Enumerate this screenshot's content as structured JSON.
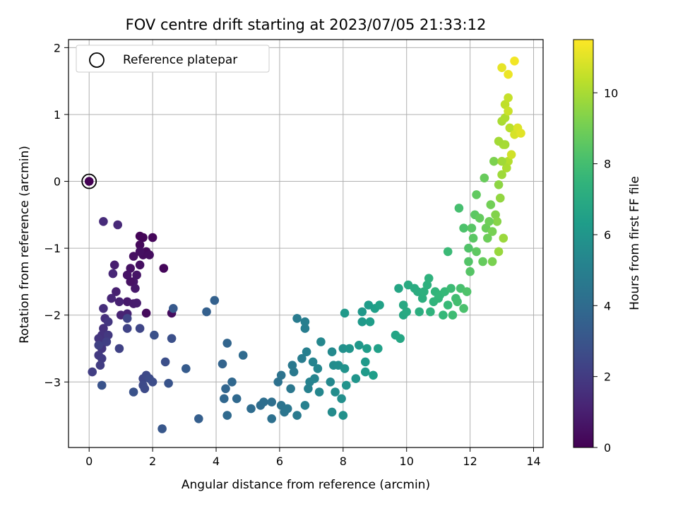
{
  "chart_data": {
    "type": "scatter",
    "title": "FOV centre drift starting at 2023/07/05 21:33:12",
    "xlabel": "Angular distance from reference (arcmin)",
    "ylabel": "Rotation from reference (arcmin)",
    "xlim": [
      -0.65,
      14.3
    ],
    "ylim": [
      -3.98,
      2.12
    ],
    "xticks": [
      0,
      2,
      4,
      6,
      8,
      10,
      12,
      14
    ],
    "yticks": [
      -3,
      -2,
      -1,
      0,
      1,
      2
    ],
    "grid": true,
    "colormap": "viridis",
    "colorbar": {
      "label": "Hours from first FF file",
      "range": [
        0,
        11.5
      ],
      "ticks": [
        0,
        2,
        4,
        6,
        8,
        10
      ]
    },
    "legend": {
      "position": "top-left",
      "entries": [
        "Reference platepar"
      ]
    },
    "reference_point": {
      "x": 0,
      "y": 0
    },
    "point_color_rule": "color encodes hours from first FF file (0 to 11.5 h)",
    "points": [
      [
        0.0,
        0.0,
        0.0
      ],
      [
        1.6,
        -0.82,
        0.1
      ],
      [
        1.7,
        -0.84,
        0.15
      ],
      [
        2.0,
        -0.84,
        0.2
      ],
      [
        1.6,
        -0.95,
        0.25
      ],
      [
        1.8,
        -1.05,
        0.3
      ],
      [
        1.7,
        -1.1,
        0.35
      ],
      [
        1.9,
        -1.1,
        0.4
      ],
      [
        1.6,
        -1.25,
        0.45
      ],
      [
        1.4,
        -1.12,
        0.5
      ],
      [
        1.3,
        -1.3,
        0.55
      ],
      [
        1.2,
        -1.4,
        0.6
      ],
      [
        1.5,
        -1.4,
        0.65
      ],
      [
        1.4,
        -1.5,
        0.7
      ],
      [
        1.45,
        -1.6,
        0.75
      ],
      [
        1.2,
        -1.8,
        0.8
      ],
      [
        1.4,
        -1.83,
        0.85
      ],
      [
        1.5,
        -1.82,
        0.9
      ],
      [
        0.8,
        -1.25,
        0.95
      ],
      [
        0.85,
        -1.65,
        1.0
      ],
      [
        0.95,
        -1.8,
        1.05
      ],
      [
        1.2,
        -1.98,
        1.1
      ],
      [
        1.0,
        -2.0,
        1.15
      ],
      [
        1.8,
        -1.97,
        0.3
      ],
      [
        2.35,
        -1.3,
        0.2
      ],
      [
        2.6,
        -1.97,
        0.4
      ],
      [
        1.6,
        -1.05,
        0.45
      ],
      [
        1.3,
        -1.5,
        0.55
      ],
      [
        0.7,
        -1.75,
        1.2
      ],
      [
        0.75,
        -1.38,
        1.25
      ],
      [
        0.9,
        -0.65,
        1.3
      ],
      [
        0.45,
        -0.6,
        1.4
      ],
      [
        0.45,
        -1.9,
        1.5
      ],
      [
        0.5,
        -2.05,
        1.55
      ],
      [
        0.45,
        -2.2,
        1.6
      ],
      [
        0.4,
        -2.3,
        1.65
      ],
      [
        0.35,
        -2.4,
        1.7
      ],
      [
        0.3,
        -2.35,
        1.75
      ],
      [
        0.4,
        -2.5,
        1.8
      ],
      [
        0.6,
        -2.1,
        1.85
      ],
      [
        0.6,
        -2.3,
        1.9
      ],
      [
        0.3,
        -2.6,
        1.95
      ],
      [
        0.4,
        -2.65,
        2.0
      ],
      [
        0.35,
        -2.75,
        2.05
      ],
      [
        0.1,
        -2.85,
        2.1
      ],
      [
        0.55,
        -2.4,
        2.15
      ],
      [
        0.3,
        -2.45,
        2.2
      ],
      [
        0.95,
        -2.5,
        2.25
      ],
      [
        1.2,
        -2.2,
        2.3
      ],
      [
        1.2,
        -2.05,
        2.35
      ],
      [
        1.6,
        -2.2,
        2.4
      ],
      [
        1.7,
        -2.95,
        2.45
      ],
      [
        1.8,
        -2.9,
        2.5
      ],
      [
        1.7,
        -3.05,
        2.55
      ],
      [
        1.75,
        -3.1,
        2.6
      ],
      [
        1.9,
        -2.95,
        2.65
      ],
      [
        2.0,
        -3.0,
        2.7
      ],
      [
        2.4,
        -2.7,
        2.75
      ],
      [
        2.6,
        -2.35,
        2.8
      ],
      [
        2.05,
        -2.3,
        2.85
      ],
      [
        1.4,
        -3.15,
        2.9
      ],
      [
        0.4,
        -3.05,
        2.95
      ],
      [
        2.5,
        -3.02,
        3.0
      ],
      [
        2.3,
        -3.7,
        3.1
      ],
      [
        2.65,
        -1.9,
        3.2
      ],
      [
        3.05,
        -2.8,
        3.3
      ],
      [
        3.45,
        -3.55,
        3.45
      ],
      [
        3.7,
        -1.95,
        3.5
      ],
      [
        3.95,
        -1.78,
        3.55
      ],
      [
        4.2,
        -2.73,
        3.65
      ],
      [
        4.35,
        -2.42,
        3.7
      ],
      [
        4.3,
        -3.1,
        3.75
      ],
      [
        4.25,
        -3.25,
        3.8
      ],
      [
        4.5,
        -3.0,
        3.85
      ],
      [
        4.65,
        -3.25,
        3.9
      ],
      [
        4.35,
        -3.5,
        3.95
      ],
      [
        4.85,
        -2.6,
        4.0
      ],
      [
        5.1,
        -3.4,
        4.05
      ],
      [
        5.4,
        -3.35,
        4.1
      ],
      [
        5.5,
        -3.3,
        4.15
      ],
      [
        5.75,
        -3.3,
        4.2
      ],
      [
        5.75,
        -3.55,
        4.25
      ],
      [
        5.95,
        -3.0,
        4.3
      ],
      [
        6.05,
        -2.9,
        4.35
      ],
      [
        6.05,
        -3.35,
        4.4
      ],
      [
        6.15,
        -3.45,
        4.45
      ],
      [
        6.25,
        -3.4,
        4.5
      ],
      [
        6.35,
        -3.1,
        4.55
      ],
      [
        6.4,
        -2.75,
        4.6
      ],
      [
        6.45,
        -2.85,
        4.65
      ],
      [
        6.55,
        -3.5,
        4.7
      ],
      [
        6.55,
        -2.05,
        4.75
      ],
      [
        6.7,
        -2.65,
        4.8
      ],
      [
        6.8,
        -2.2,
        4.85
      ],
      [
        6.8,
        -2.1,
        4.9
      ],
      [
        6.85,
        -2.55,
        4.95
      ],
      [
        6.8,
        -3.35,
        5.0
      ],
      [
        6.9,
        -3.1,
        5.05
      ],
      [
        6.95,
        -3.0,
        5.1
      ],
      [
        7.05,
        -2.7,
        5.15
      ],
      [
        7.1,
        -2.95,
        5.2
      ],
      [
        7.2,
        -2.8,
        5.25
      ],
      [
        7.25,
        -3.15,
        5.3
      ],
      [
        7.3,
        -2.4,
        5.35
      ],
      [
        7.6,
        -3.0,
        5.4
      ],
      [
        7.65,
        -2.55,
        5.45
      ],
      [
        7.65,
        -3.45,
        5.5
      ],
      [
        7.7,
        -2.75,
        5.55
      ],
      [
        7.75,
        -3.15,
        5.6
      ],
      [
        7.85,
        -2.75,
        5.65
      ],
      [
        7.95,
        -3.25,
        5.7
      ],
      [
        8.0,
        -2.5,
        5.75
      ],
      [
        8.0,
        -3.5,
        5.8
      ],
      [
        8.05,
        -2.8,
        5.85
      ],
      [
        8.1,
        -3.05,
        5.9
      ],
      [
        8.2,
        -2.5,
        5.95
      ],
      [
        8.4,
        -2.95,
        6.0
      ],
      [
        8.5,
        -2.45,
        6.05
      ],
      [
        8.6,
        -1.95,
        6.1
      ],
      [
        8.6,
        -2.1,
        6.15
      ],
      [
        8.7,
        -2.7,
        6.2
      ],
      [
        8.7,
        -2.85,
        6.25
      ],
      [
        8.75,
        -2.5,
        6.3
      ],
      [
        8.85,
        -2.1,
        6.35
      ],
      [
        8.95,
        -2.9,
        6.4
      ],
      [
        9.0,
        -1.9,
        6.45
      ],
      [
        9.1,
        -2.5,
        6.5
      ],
      [
        9.15,
        -1.85,
        6.55
      ],
      [
        8.05,
        -1.97,
        6.15
      ],
      [
        8.8,
        -1.85,
        6.3
      ],
      [
        9.65,
        -2.3,
        6.7
      ],
      [
        9.75,
        -1.6,
        6.75
      ],
      [
        9.8,
        -2.35,
        6.8
      ],
      [
        9.9,
        -2.0,
        6.85
      ],
      [
        9.9,
        -1.85,
        6.9
      ],
      [
        10.0,
        -1.95,
        6.95
      ],
      [
        10.05,
        -1.55,
        7.0
      ],
      [
        10.25,
        -1.6,
        7.05
      ],
      [
        10.35,
        -1.65,
        7.1
      ],
      [
        10.4,
        -1.95,
        7.15
      ],
      [
        10.5,
        -1.75,
        7.2
      ],
      [
        10.55,
        -1.65,
        7.25
      ],
      [
        10.65,
        -1.55,
        7.3
      ],
      [
        10.7,
        -1.45,
        7.35
      ],
      [
        10.75,
        -1.95,
        7.4
      ],
      [
        10.85,
        -1.8,
        7.45
      ],
      [
        10.9,
        -1.65,
        7.5
      ],
      [
        11.0,
        -1.75,
        7.55
      ],
      [
        11.05,
        -1.7,
        7.6
      ],
      [
        11.15,
        -2.0,
        7.65
      ],
      [
        11.2,
        -1.65,
        7.7
      ],
      [
        11.3,
        -1.85,
        7.75
      ],
      [
        11.3,
        -1.05,
        7.8
      ],
      [
        11.4,
        -1.6,
        7.85
      ],
      [
        11.45,
        -2.0,
        7.9
      ],
      [
        11.55,
        -1.75,
        7.95
      ],
      [
        11.6,
        -1.8,
        8.0
      ],
      [
        11.65,
        -0.4,
        8.05
      ],
      [
        11.7,
        -1.6,
        8.1
      ],
      [
        11.8,
        -1.9,
        8.15
      ],
      [
        11.8,
        -0.7,
        8.2
      ],
      [
        11.9,
        -1.65,
        8.25
      ],
      [
        11.95,
        -1.0,
        8.3
      ],
      [
        11.95,
        -1.2,
        8.35
      ],
      [
        12.0,
        -1.35,
        8.4
      ],
      [
        12.05,
        -0.7,
        8.45
      ],
      [
        12.1,
        -0.85,
        8.5
      ],
      [
        12.15,
        -0.5,
        8.55
      ],
      [
        12.2,
        -1.05,
        8.6
      ],
      [
        12.2,
        -0.2,
        8.65
      ],
      [
        12.3,
        -0.55,
        8.7
      ],
      [
        12.4,
        -1.2,
        8.75
      ],
      [
        12.45,
        0.05,
        8.8
      ],
      [
        12.5,
        -0.7,
        8.85
      ],
      [
        12.55,
        -0.85,
        8.9
      ],
      [
        12.65,
        -0.35,
        9.0
      ],
      [
        12.7,
        -0.75,
        9.1
      ],
      [
        12.75,
        0.3,
        9.2
      ],
      [
        12.8,
        -0.5,
        9.3
      ],
      [
        12.85,
        -0.6,
        9.4
      ],
      [
        12.9,
        -0.05,
        9.5
      ],
      [
        12.95,
        -0.25,
        9.6
      ],
      [
        12.9,
        -1.05,
        9.7
      ],
      [
        13.05,
        -0.85,
        9.75
      ],
      [
        13.0,
        0.1,
        9.8
      ],
      [
        13.1,
        0.55,
        9.9
      ],
      [
        13.0,
        0.9,
        10.0
      ],
      [
        13.1,
        0.95,
        10.1
      ],
      [
        13.2,
        0.3,
        10.2
      ],
      [
        13.25,
        0.8,
        10.3
      ],
      [
        13.1,
        1.15,
        10.4
      ],
      [
        13.2,
        1.25,
        10.5
      ],
      [
        13.2,
        1.05,
        10.6
      ],
      [
        13.3,
        0.4,
        10.7
      ],
      [
        13.4,
        0.7,
        10.8
      ],
      [
        13.5,
        0.8,
        10.9
      ],
      [
        13.6,
        0.72,
        11.0
      ],
      [
        13.0,
        1.7,
        11.1
      ],
      [
        13.2,
        1.6,
        11.2
      ],
      [
        13.4,
        1.8,
        11.3
      ],
      [
        12.7,
        -1.2,
        9.15
      ],
      [
        12.6,
        -0.6,
        8.95
      ],
      [
        13.05,
        0.55,
        9.95
      ],
      [
        13.15,
        0.2,
        10.05
      ],
      [
        13.0,
        0.3,
        9.85
      ],
      [
        12.9,
        0.6,
        9.9
      ]
    ]
  }
}
